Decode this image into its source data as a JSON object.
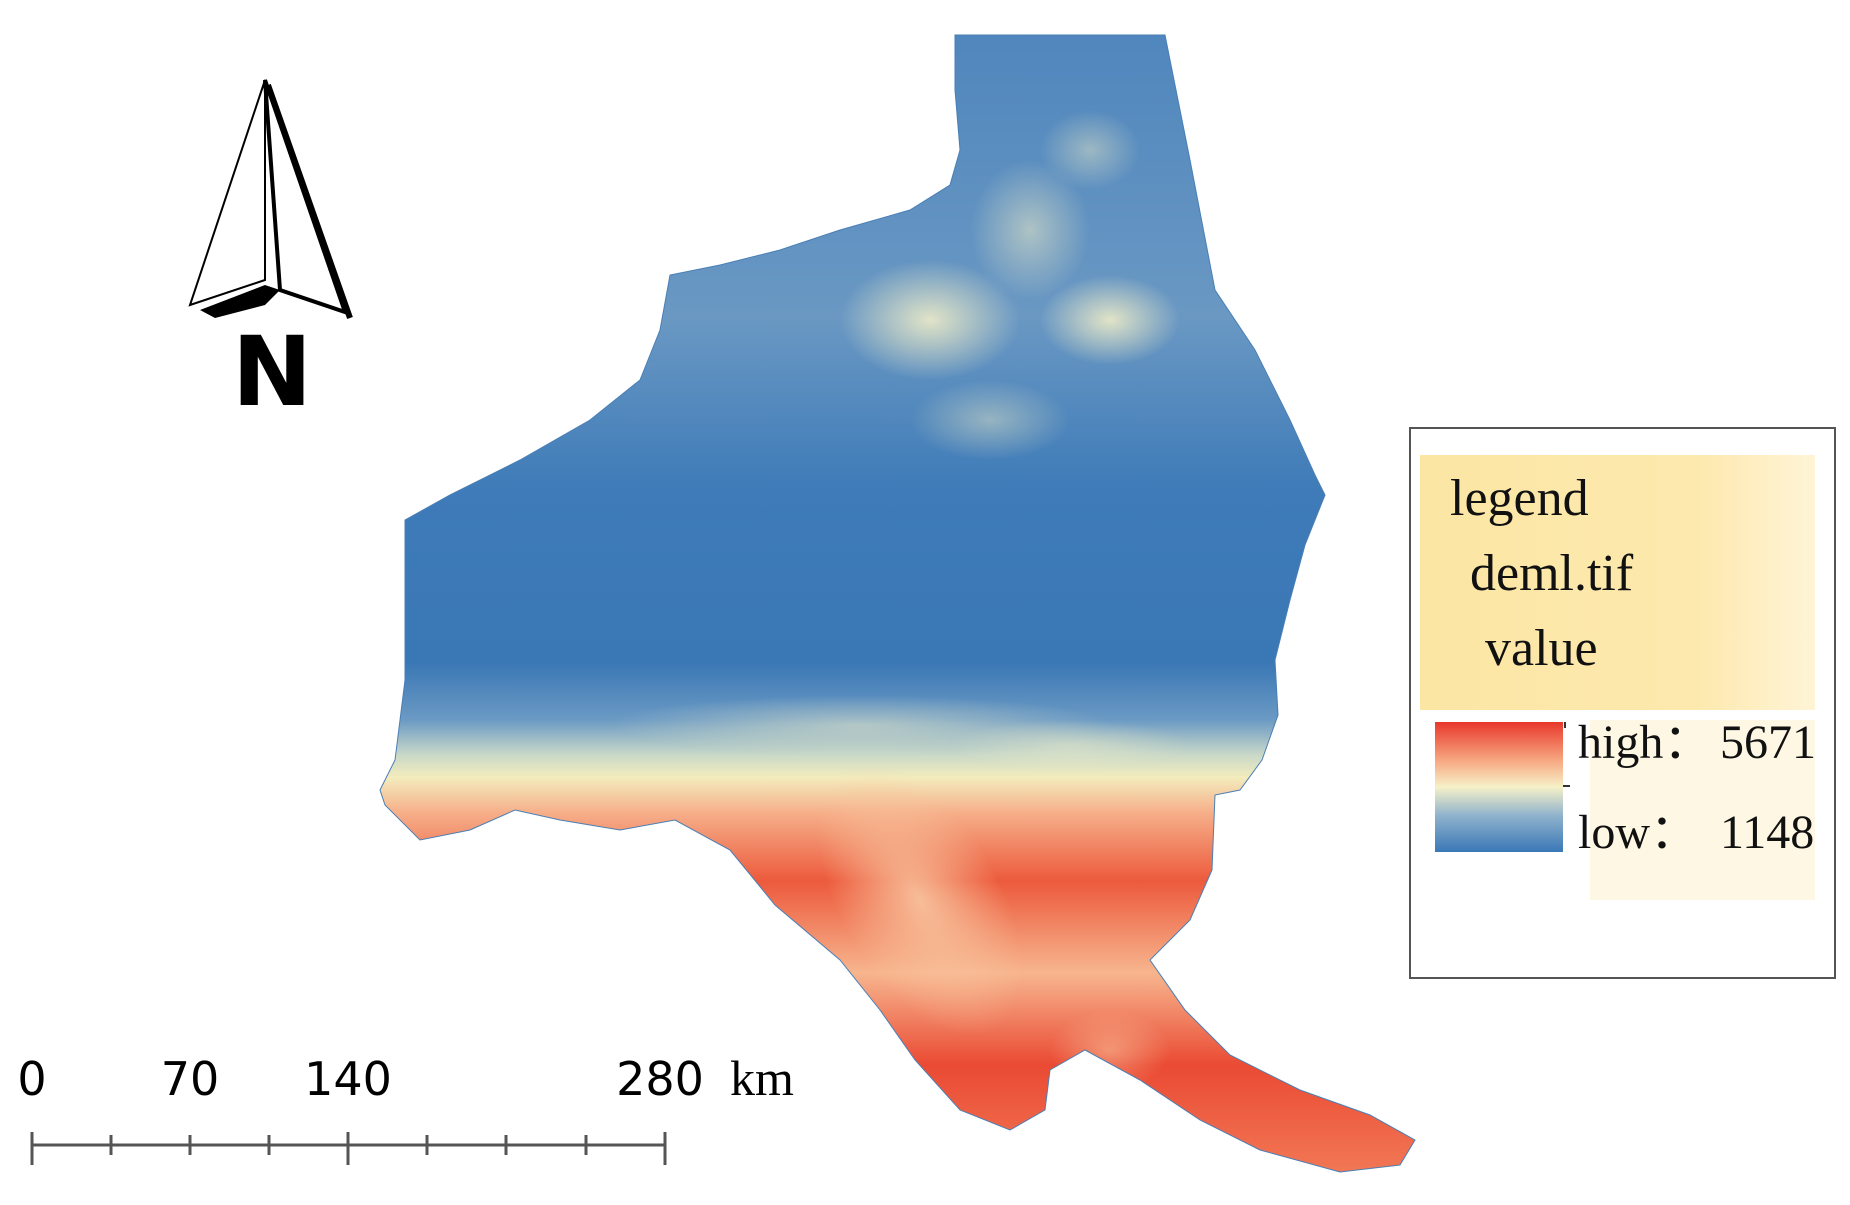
{
  "north_arrow": {
    "letter": "N"
  },
  "scale_bar": {
    "ticks": [
      "0",
      "70",
      "140",
      "280"
    ],
    "unit": "km"
  },
  "legend": {
    "title": "legend",
    "layer": "deml.tif",
    "field": "value",
    "high_label": "high：",
    "high_value": "5671",
    "low_label": "low：",
    "low_value": "1148",
    "ramp_colors": [
      "#e8382a",
      "#f7a983",
      "#f6f1c8",
      "#8fb2cc",
      "#3a78b6"
    ]
  },
  "colors": {
    "low": "#3a78b6",
    "mid": "#f4f0c6",
    "high": "#e8382a",
    "legend_bg": "#fde9a8"
  }
}
